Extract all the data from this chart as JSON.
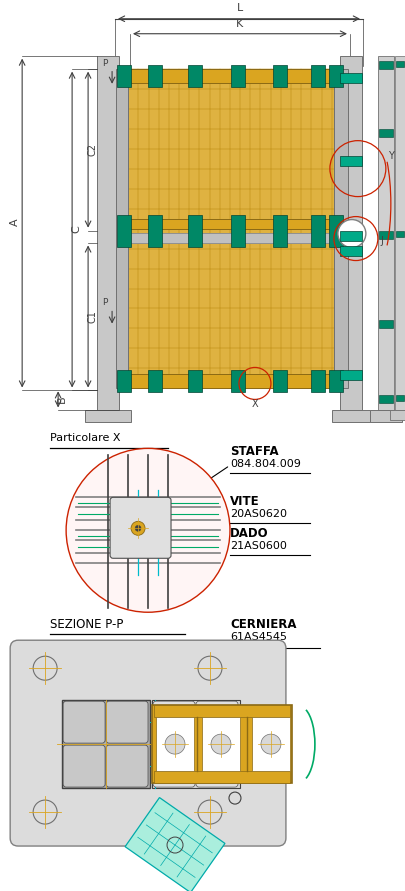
{
  "bg_color": "#ffffff",
  "fig_width": 4.06,
  "fig_height": 8.91,
  "dpi": 100,
  "panel_color": "#DAA520",
  "green_color": "#008866",
  "dim_color": "#404040",
  "ann_color": "#CC2200",
  "gray_post": "#C8C8C8",
  "section2": {
    "label": "Particolare X",
    "staffa_label": "STAFFA",
    "staffa_code": "084.804.009",
    "vite_label": "VITE",
    "vite_code": "20AS0620",
    "dado_label": "DADO",
    "dado_code": "21AS0600"
  },
  "section3": {
    "label": "SEZIONE P-P",
    "cerniera_label": "CERNIERA",
    "cerniera_code": "61AS4545"
  }
}
